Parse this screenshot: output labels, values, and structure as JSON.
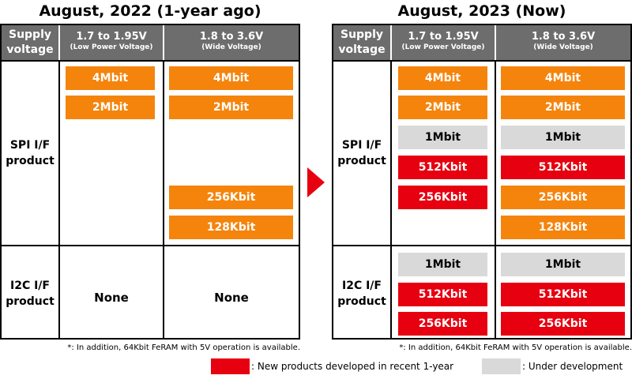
{
  "left": {
    "title": "August, 2022 (1-year ago)",
    "header": {
      "supply_line1": "Supply",
      "supply_line2": "voltage",
      "low_voltage": "1.7 to 1.95V",
      "low_voltage_sub": "(Low Power Voltage)",
      "wide_voltage": "1.8 to 3.6V",
      "wide_voltage_sub": "(Wide Voltage)"
    },
    "spi_label_line1": "SPI I/F",
    "spi_label_line2": "product",
    "i2c_label_line1": "I2C I/F",
    "i2c_label_line2": "product",
    "spi_low": [
      {
        "label": "4Mbit",
        "status": "orange"
      },
      {
        "label": "2Mbit",
        "status": "orange"
      }
    ],
    "spi_wide_top": [
      {
        "label": "4Mbit",
        "status": "orange"
      },
      {
        "label": "2Mbit",
        "status": "orange"
      }
    ],
    "spi_wide_bottom": [
      {
        "label": "256Kbit",
        "status": "orange"
      },
      {
        "label": "128Kbit",
        "status": "orange"
      }
    ],
    "i2c_low_none": "None",
    "i2c_wide_none": "None",
    "footnote": "*: In addition, 64Kbit FeRAM with 5V operation is available."
  },
  "right": {
    "title": "August, 2023 (Now)",
    "header": {
      "supply_line1": "Supply",
      "supply_line2": "voltage",
      "low_voltage": "1.7 to 1.95V",
      "low_voltage_sub": "(Low Power Voltage)",
      "wide_voltage": "1.8 to 3.6V",
      "wide_voltage_sub": "(Wide Voltage)"
    },
    "spi_label_line1": "SPI I/F",
    "spi_label_line2": "product",
    "i2c_label_line1": "I2C I/F",
    "i2c_label_line2": "product",
    "spi_low": [
      {
        "label": "4Mbit",
        "status": "orange"
      },
      {
        "label": "2Mbit",
        "status": "orange"
      },
      {
        "label": "1Mbit",
        "status": "gray"
      },
      {
        "label": "512Kbit",
        "status": "red"
      },
      {
        "label": "256Kbit",
        "status": "red"
      }
    ],
    "spi_wide": [
      {
        "label": "4Mbit",
        "status": "orange"
      },
      {
        "label": "2Mbit",
        "status": "orange"
      },
      {
        "label": "1Mbit",
        "status": "gray"
      },
      {
        "label": "512Kbit",
        "status": "red"
      },
      {
        "label": "256Kbit",
        "status": "orange"
      },
      {
        "label": "128Kbit",
        "status": "orange"
      }
    ],
    "i2c_low": [
      {
        "label": "1Mbit",
        "status": "gray"
      },
      {
        "label": "512Kbit",
        "status": "red"
      },
      {
        "label": "256Kbit",
        "status": "red"
      }
    ],
    "i2c_wide": [
      {
        "label": "1Mbit",
        "status": "gray"
      },
      {
        "label": "512Kbit",
        "status": "red"
      },
      {
        "label": "256Kbit",
        "status": "red"
      }
    ],
    "footnote": "*: In addition, 64Kbit FeRAM with 5V operation is available."
  },
  "legend": {
    "new_label": ": New products developed in recent 1-year",
    "dev_label": ": Under development"
  },
  "colors": {
    "orange": "#f5840c",
    "red": "#e60010",
    "gray": "#d9d9d9",
    "header": "#6d6d6d"
  }
}
